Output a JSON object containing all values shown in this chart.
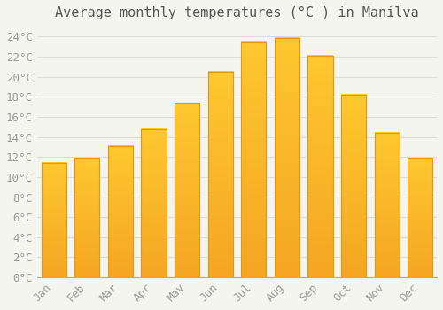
{
  "title": "Average monthly temperatures (°C ) in Manilva",
  "months": [
    "Jan",
    "Feb",
    "Mar",
    "Apr",
    "May",
    "Jun",
    "Jul",
    "Aug",
    "Sep",
    "Oct",
    "Nov",
    "Dec"
  ],
  "temperatures": [
    11.4,
    11.9,
    13.1,
    14.8,
    17.4,
    20.5,
    23.5,
    23.9,
    22.1,
    18.2,
    14.4,
    11.9
  ],
  "bar_color_top": "#FFC830",
  "bar_color_bottom": "#F5A623",
  "bar_edge_color": "#E8960A",
  "background_color": "#F5F5F0",
  "grid_color": "#DDDDDD",
  "text_color": "#999999",
  "ylim": [
    0,
    25
  ],
  "yticks": [
    0,
    2,
    4,
    6,
    8,
    10,
    12,
    14,
    16,
    18,
    20,
    22,
    24
  ],
  "title_fontsize": 11,
  "tick_fontsize": 9,
  "font_family": "monospace"
}
